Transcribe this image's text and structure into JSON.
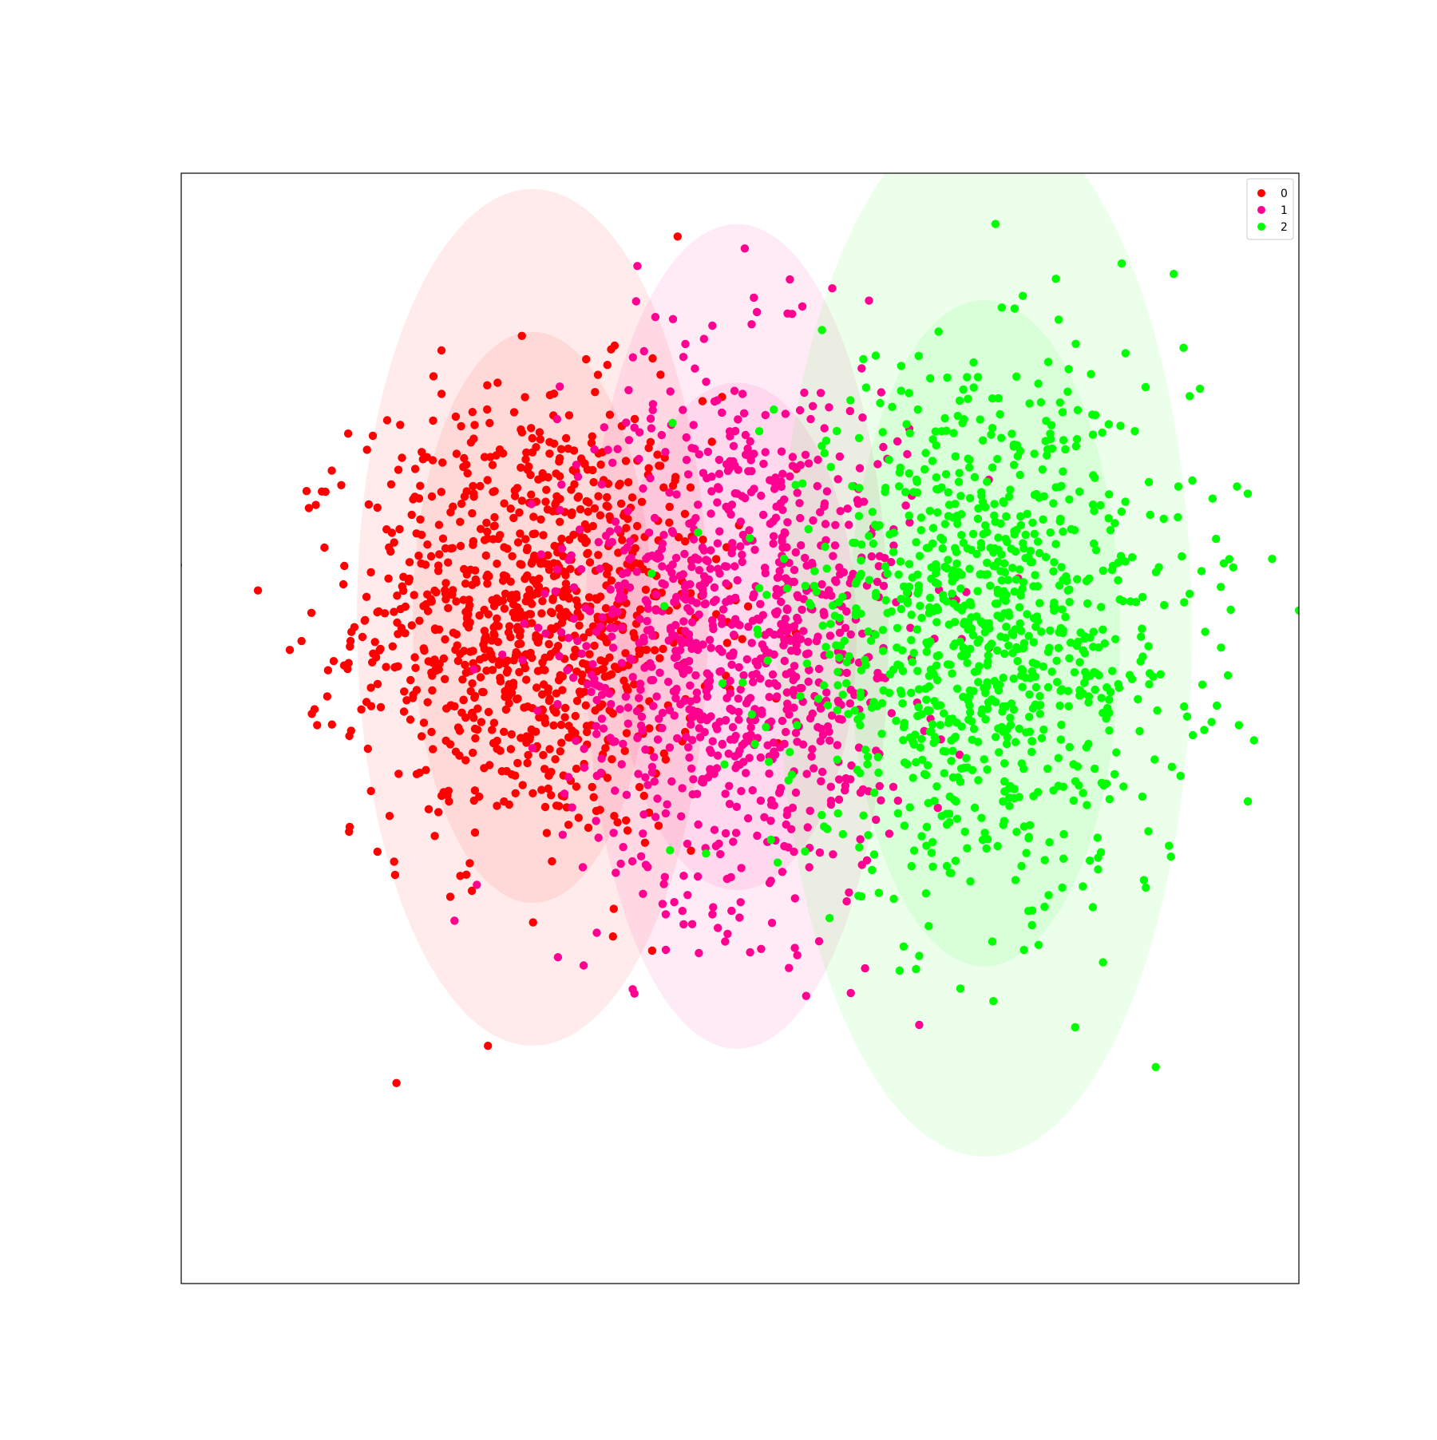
{
  "chart_data": {
    "type": "scatter",
    "title": "",
    "xlabel": "",
    "ylabel": "",
    "xlim": [
      -3.5,
      3.5
    ],
    "ylim": [
      -3.5,
      3.5
    ],
    "ticks_visible": false,
    "grid": false,
    "legend": {
      "placement": "top-right",
      "entries": [
        "0",
        "1",
        "2"
      ]
    },
    "series": [
      {
        "name": "0",
        "color": "#ff0000",
        "n_points": 1000,
        "center": [
          -1.3,
          0.7
        ],
        "std": [
          0.55,
          0.7
        ],
        "points": [
          [
            -1.92,
            2.22
          ],
          [
            -2.01,
            1.45
          ],
          [
            -2.27,
            0.28
          ],
          [
            -1.95,
            -0.51
          ],
          [
            -2.31,
            0.14
          ],
          [
            -1.75,
            1.15
          ],
          [
            -2.14,
            1.63
          ],
          [
            -1.6,
            0.55
          ]
        ]
      },
      {
        "name": "1",
        "color": "#ff0090",
        "n_points": 1000,
        "center": [
          -0.02,
          0.58
        ],
        "std": [
          0.55,
          0.85
        ],
        "points": [
          [
            -0.42,
            2.58
          ],
          [
            -0.04,
            1.78
          ],
          [
            0.39,
            2.66
          ],
          [
            -0.59,
            -0.86
          ],
          [
            0.57,
            -0.48
          ],
          [
            0.75,
            1.64
          ],
          [
            -0.16,
            -0.64
          ],
          [
            0.43,
            1.67
          ]
        ]
      },
      {
        "name": "2",
        "color": "#00ff00",
        "n_points": 1000,
        "center": [
          1.53,
          0.6
        ],
        "std": [
          0.65,
          0.8
        ],
        "points": [
          [
            1.6,
            3.18
          ],
          [
            0.85,
            2.35
          ],
          [
            0.76,
            -1.06
          ],
          [
            3.18,
            1.48
          ],
          [
            3.03,
            1.04
          ],
          [
            2.52,
            -0.43
          ],
          [
            1.36,
            -0.57
          ],
          [
            1.47,
            -0.5
          ]
        ]
      }
    ],
    "ellipses": [
      {
        "series": "0",
        "center": [
          -1.3,
          0.7
        ],
        "rx": [
          0.75,
          1.1
        ],
        "ry": [
          1.8,
          2.7
        ]
      },
      {
        "series": "1",
        "center": [
          -0.02,
          0.58
        ],
        "rx": [
          0.75,
          0.95
        ],
        "ry": [
          1.6,
          2.6
        ]
      },
      {
        "series": "2",
        "center": [
          1.53,
          0.6
        ],
        "rx": [
          0.85,
          1.3
        ],
        "ry": [
          2.1,
          3.3
        ]
      }
    ]
  }
}
